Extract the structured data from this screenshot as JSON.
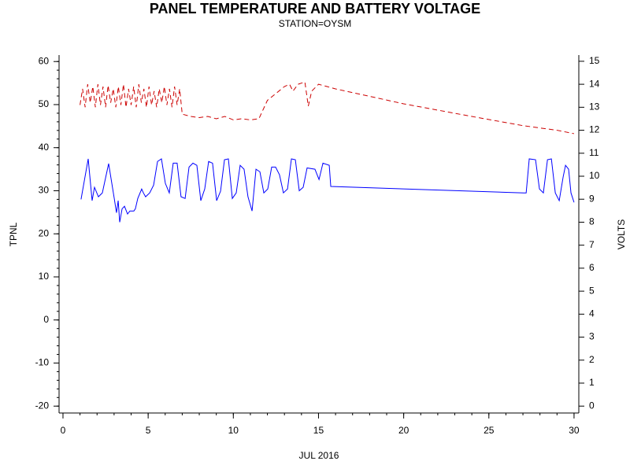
{
  "chart_data": {
    "type": "line",
    "title": "PANEL TEMPERATURE AND BATTERY VOLTAGE",
    "subtitle": "STATION=OYSM",
    "x_label": "JUL 2016",
    "y_label": "TPNL",
    "y2_label": "VOLTS",
    "xlim": [
      -0.23,
      30.28
    ],
    "xticks": [
      0,
      5,
      10,
      15,
      20,
      25,
      30
    ],
    "xminorticks": [
      0,
      1,
      2,
      3,
      4,
      5,
      6,
      7,
      8,
      9,
      10,
      11,
      12,
      13,
      14,
      15,
      16,
      17,
      18,
      19,
      20,
      21,
      22,
      23,
      24,
      25,
      26,
      27,
      28,
      29,
      30
    ],
    "ylim": [
      -21.6,
      61.5
    ],
    "yticks": [
      -20,
      -10,
      0,
      10,
      20,
      30,
      40,
      50,
      60
    ],
    "yminorticks": [
      -20,
      -18,
      -16,
      -14,
      -12,
      -10,
      -8,
      -6,
      -4,
      -2,
      0,
      2,
      4,
      6,
      8,
      10,
      12,
      14,
      16,
      18,
      20,
      22,
      24,
      26,
      28,
      30,
      32,
      34,
      36,
      38,
      40,
      42,
      44,
      46,
      48,
      50,
      52,
      54,
      56,
      58,
      60
    ],
    "y2lim": [
      -0.3,
      15.27
    ],
    "y2ticks": [
      0,
      1,
      2,
      3,
      4,
      5,
      6,
      7,
      8,
      9,
      10,
      11,
      12,
      13,
      14,
      15
    ],
    "series": [
      {
        "name": "TPNL",
        "color": "#0000ff",
        "dash": false,
        "x": [
          1.06,
          1.48,
          1.71,
          1.85,
          2.08,
          2.31,
          2.68,
          3.01,
          3.14,
          3.24,
          3.33,
          3.47,
          3.61,
          3.79,
          3.93,
          4.16,
          4.25,
          4.39,
          4.62,
          4.72,
          4.85,
          5.09,
          5.32,
          5.55,
          5.78,
          6.01,
          6.24,
          6.47,
          6.7,
          6.93,
          7.17,
          7.4,
          7.63,
          7.86,
          8.09,
          8.32,
          8.55,
          8.78,
          9.02,
          9.25,
          9.48,
          9.71,
          9.94,
          10.17,
          10.4,
          10.63,
          10.86,
          11.1,
          11.33,
          11.56,
          11.79,
          12.02,
          12.25,
          12.48,
          12.71,
          12.94,
          13.18,
          13.41,
          13.64,
          13.87,
          14.1,
          14.33,
          14.79,
          15.03,
          15.26,
          15.63,
          15.72,
          27.05,
          27.19,
          27.37,
          27.74,
          27.97,
          28.2,
          28.44,
          28.67,
          28.9,
          29.13,
          29.36,
          29.5,
          29.68,
          29.82,
          30.0
        ],
        "values": [
          28.0,
          37.4,
          27.7,
          30.8,
          28.6,
          29.5,
          36.3,
          28.2,
          24.9,
          27.7,
          22.7,
          25.8,
          26.4,
          24.6,
          25.3,
          25.3,
          25.8,
          28.2,
          30.4,
          29.5,
          28.6,
          29.5,
          31.3,
          36.8,
          37.4,
          31.7,
          29.5,
          36.4,
          36.4,
          28.6,
          28.2,
          35.5,
          36.4,
          35.9,
          27.7,
          30.4,
          36.8,
          36.4,
          27.7,
          29.9,
          37.2,
          37.4,
          28.2,
          29.5,
          35.9,
          35.0,
          28.6,
          25.3,
          35.0,
          34.4,
          29.5,
          30.4,
          35.5,
          35.5,
          33.7,
          29.5,
          30.4,
          37.4,
          37.2,
          30.0,
          30.8,
          35.3,
          35.0,
          32.6,
          36.4,
          35.9,
          31.0,
          29.5,
          29.5,
          37.4,
          37.2,
          30.4,
          29.5,
          37.2,
          37.4,
          29.5,
          27.7,
          33.2,
          35.9,
          35.0,
          29.5,
          27.3
        ]
      },
      {
        "name": "VOLTS",
        "color": "#cc0000",
        "dash": true,
        "axis": "y2",
        "x": [
          1.0,
          1.15,
          1.3,
          1.45,
          1.6,
          1.75,
          1.9,
          2.05,
          2.2,
          2.35,
          2.5,
          2.65,
          2.8,
          2.95,
          3.1,
          3.25,
          3.4,
          3.55,
          3.7,
          3.85,
          4.0,
          4.15,
          4.3,
          4.45,
          4.6,
          4.75,
          4.9,
          5.05,
          5.2,
          5.35,
          5.5,
          5.65,
          5.8,
          5.95,
          6.1,
          6.25,
          6.4,
          6.55,
          6.7,
          6.85,
          7.0,
          7.5,
          8.0,
          8.5,
          9.0,
          9.5,
          10.0,
          10.5,
          11.0,
          11.5,
          12.0,
          12.5,
          13.0,
          13.3,
          13.5,
          13.8,
          14.2,
          14.4,
          14.6,
          15.0,
          15.5,
          16.0,
          20.0,
          24.0,
          27.0,
          28.0,
          29.0,
          30.0
        ],
        "values": [
          13.1,
          13.8,
          13.0,
          14.0,
          13.2,
          13.9,
          13.0,
          14.0,
          13.1,
          13.9,
          13.0,
          13.95,
          13.2,
          13.8,
          13.0,
          13.9,
          13.1,
          14.0,
          13.0,
          13.8,
          13.1,
          13.9,
          13.0,
          14.0,
          13.2,
          13.8,
          13.0,
          13.9,
          13.1,
          13.7,
          13.0,
          13.8,
          13.2,
          13.9,
          13.1,
          13.8,
          13.0,
          13.9,
          13.1,
          13.8,
          12.7,
          12.6,
          12.55,
          12.6,
          12.5,
          12.6,
          12.45,
          12.5,
          12.45,
          12.5,
          13.3,
          13.6,
          13.9,
          14.0,
          13.7,
          14.0,
          14.1,
          13.05,
          13.7,
          14.0,
          13.9,
          13.8,
          13.15,
          12.6,
          12.2,
          12.1,
          12.0,
          11.85
        ]
      }
    ]
  }
}
